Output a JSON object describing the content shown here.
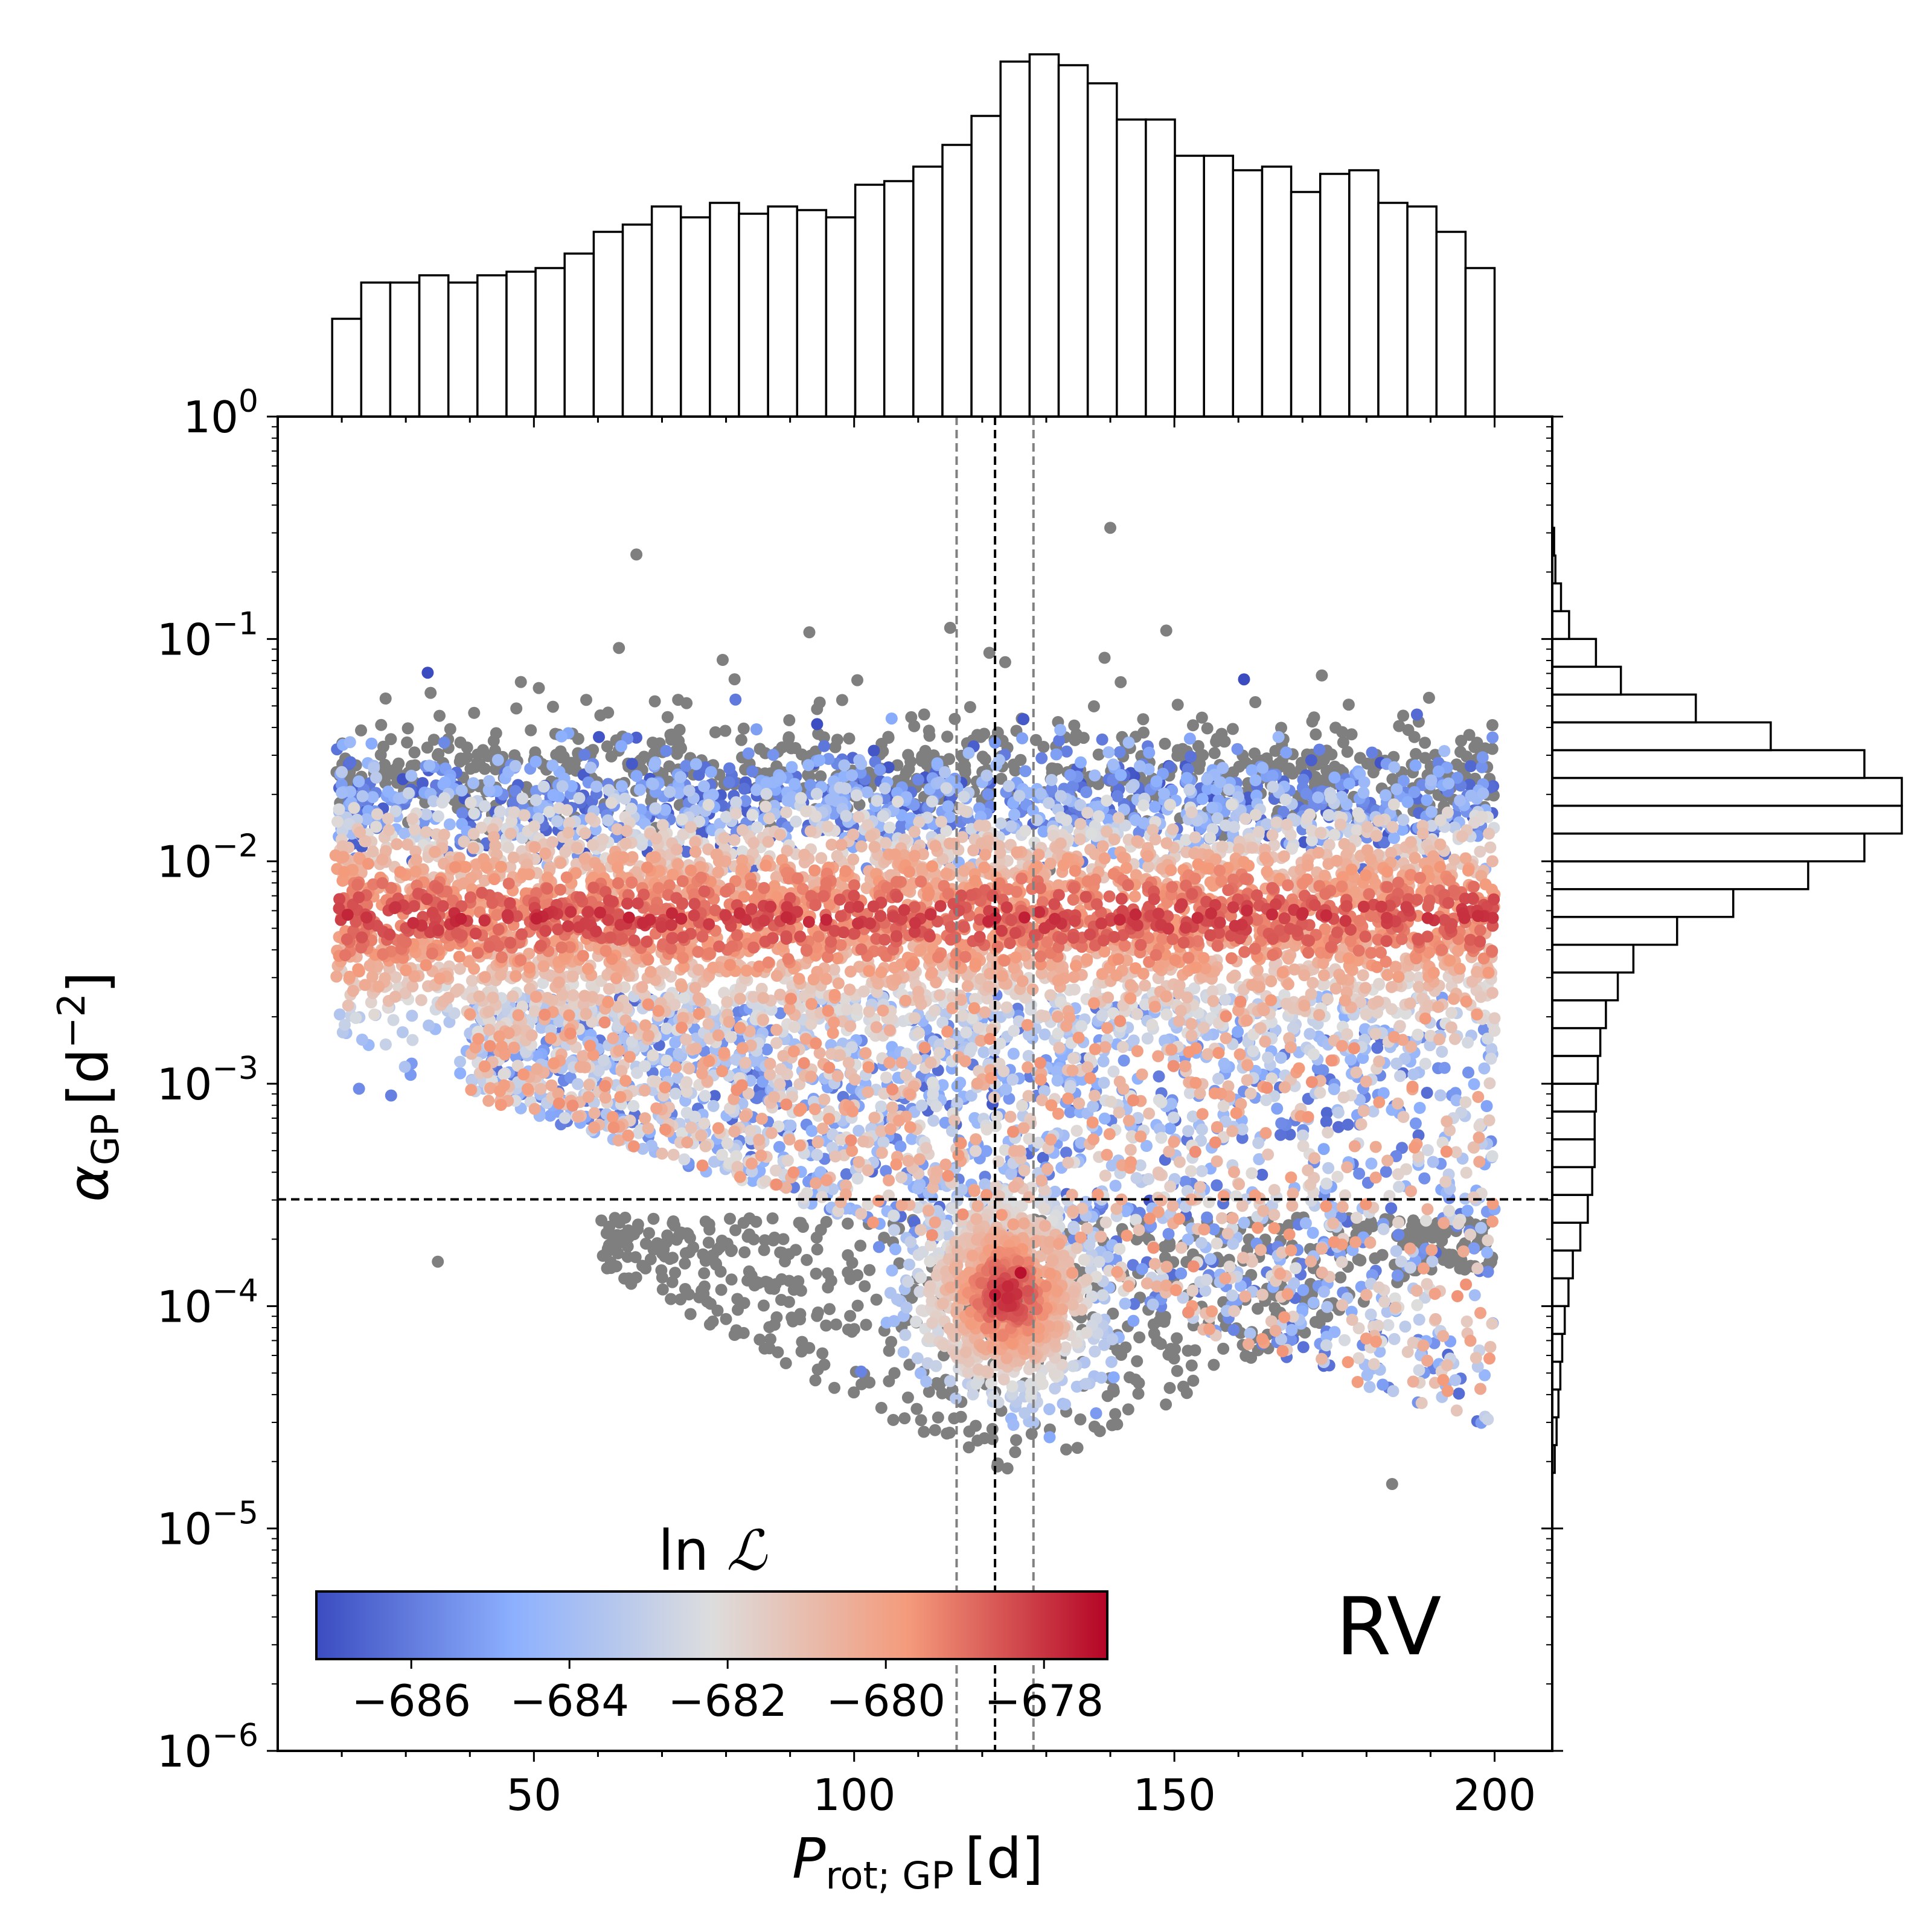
{
  "chart_data": {
    "type": "scatter",
    "subtype": "joint corner plot with marginal histograms",
    "panel_label": "RV",
    "xaxis": {
      "label_main": "P",
      "label_sub": "rot; GP",
      "label_unit": "[d]",
      "lim": [
        10,
        209
      ],
      "ticks": [
        50,
        100,
        150,
        200
      ],
      "tick_labels": [
        "50",
        "100",
        "150",
        "200"
      ]
    },
    "yaxis": {
      "scale": "log",
      "label_main": "α",
      "label_sub": "GP",
      "label_unit_base": "[d",
      "label_unit_exp": "−2",
      "label_unit_close": "]",
      "lim_exp": [
        -6,
        0
      ],
      "ticks_exp": [
        -6,
        -5,
        -4,
        -3,
        -2,
        -1,
        0
      ],
      "tick_labels": [
        {
          "base": "10",
          "exp": "−6"
        },
        {
          "base": "10",
          "exp": "−5"
        },
        {
          "base": "10",
          "exp": "−4"
        },
        {
          "base": "10",
          "exp": "−3"
        },
        {
          "base": "10",
          "exp": "−2"
        },
        {
          "base": "10",
          "exp": "−1"
        },
        {
          "base": "10",
          "exp": "0"
        }
      ]
    },
    "reference_lines": {
      "best_period": 122,
      "period_band": [
        116,
        128
      ],
      "alpha_exp": -3.52
    },
    "colorbar": {
      "title_prefix": "ln ",
      "title_symbol": "ℒ",
      "range": [
        -687.2,
        -677.2
      ],
      "ticks": [
        -686,
        -684,
        -682,
        -680,
        -678
      ],
      "tick_labels": [
        "−686",
        "−684",
        "−682",
        "−680",
        "−678"
      ],
      "colormap": "coolwarm",
      "colors": [
        "#3b4cc0",
        "#8db0fe",
        "#dddddd",
        "#f49a7b",
        "#b40426"
      ]
    },
    "outlier_color": "#7f7f7f",
    "scatter_sample": {
      "note": "representative sample of the MCMC scatter; full cloud rendered procedurally",
      "points": [
        {
          "period": 140,
          "log_alpha": -0.5,
          "lnL": null
        },
        {
          "period": 115,
          "log_alpha": -0.95,
          "lnL": null
        },
        {
          "period": 93,
          "log_alpha": -0.97,
          "lnL": null
        },
        {
          "period": 66,
          "log_alpha": -0.62,
          "lnL": null
        },
        {
          "period": 122,
          "log_alpha": -3.95,
          "lnL": -677.6
        },
        {
          "period": 126,
          "log_alpha": -3.85,
          "lnL": -677.4
        },
        {
          "period": 30,
          "log_alpha": -2.3,
          "lnL": -678.5
        },
        {
          "period": 184,
          "log_alpha": -4.8,
          "lnL": null
        },
        {
          "period": 35,
          "log_alpha": -3.8,
          "lnL": null
        }
      ]
    },
    "top_histogram": {
      "bin_edges": [
        18.5,
        200
      ],
      "counts": [
        0.27,
        0.37,
        0.37,
        0.39,
        0.37,
        0.39,
        0.4,
        0.41,
        0.45,
        0.51,
        0.53,
        0.58,
        0.55,
        0.59,
        0.56,
        0.58,
        0.57,
        0.55,
        0.64,
        0.65,
        0.69,
        0.75,
        0.83,
        0.98,
        1.0,
        0.97,
        0.92,
        0.82,
        0.82,
        0.72,
        0.72,
        0.68,
        0.69,
        0.62,
        0.67,
        0.68,
        0.59,
        0.58,
        0.51,
        0.41
      ]
    },
    "right_histogram": {
      "bin_edges_exp": [
        -6,
        0
      ],
      "counts": [
        0,
        0,
        0,
        0,
        0,
        0,
        0,
        0,
        0,
        0,
        0.004,
        0.007,
        0.01,
        0.013,
        0.016,
        0.02,
        0.026,
        0.033,
        0.045,
        0.057,
        0.064,
        0.068,
        0.068,
        0.07,
        0.073,
        0.077,
        0.086,
        0.105,
        0.13,
        0.2,
        0.29,
        0.41,
        0.5,
        0.56,
        0.56,
        0.5,
        0.35,
        0.23,
        0.11,
        0.07,
        0.027,
        0.014,
        0.005,
        0.003,
        0,
        0,
        0,
        0
      ]
    }
  }
}
